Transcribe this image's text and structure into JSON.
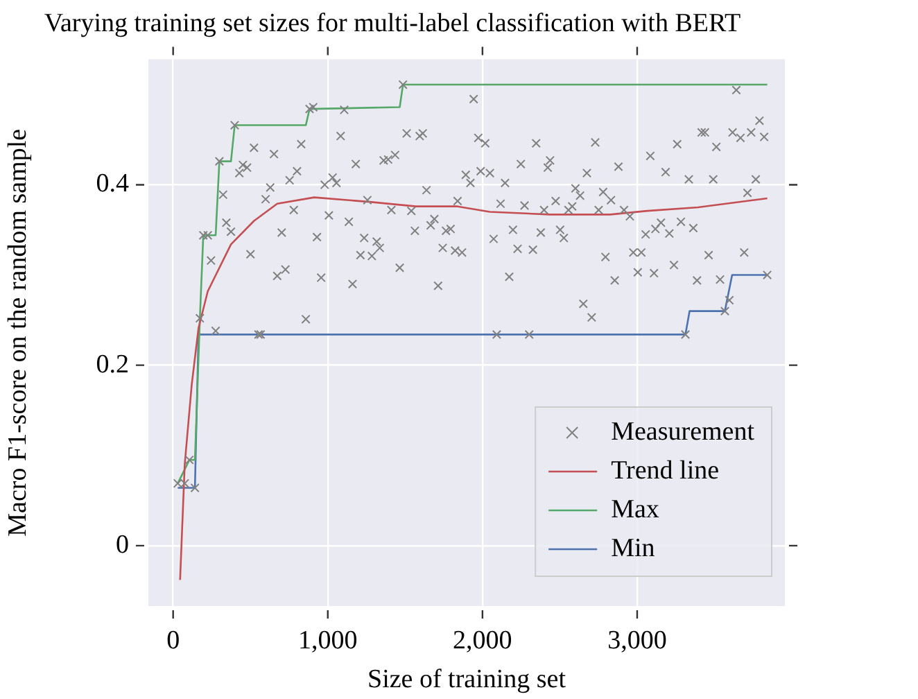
{
  "chart_data": {
    "type": "scatter",
    "title": "Varying training set sizes for multi-label classification with BERT",
    "xlabel": "Size of training set",
    "ylabel": "Macro F1-score on the random sample",
    "xlim": [
      -160,
      3955
    ],
    "ylim": [
      -0.067,
      0.539
    ],
    "xticks": [
      0,
      {
        "value": 1000,
        "label": "1,000"
      },
      {
        "value": 2000,
        "label": "2,000"
      },
      {
        "value": 3000,
        "label": "3,000"
      }
    ],
    "yticks": [
      0,
      0.2,
      0.4
    ],
    "grid": true,
    "legend": "bottom right",
    "series": [
      {
        "name": "Measurement",
        "marker": "cross",
        "color": "#808080",
        "x": [
          30,
          75,
          105,
          141,
          173,
          195,
          224,
          245,
          275,
          299,
          323,
          344,
          374,
          398,
          428,
          451,
          478,
          500,
          523,
          552,
          566,
          598,
          628,
          652,
          673,
          702,
          726,
          753,
          780,
          801,
          828,
          858,
          882,
          906,
          930,
          957,
          980,
          1007,
          1031,
          1056,
          1083,
          1106,
          1136,
          1160,
          1181,
          1211,
          1235,
          1256,
          1285,
          1316,
          1336,
          1361,
          1390,
          1411,
          1435,
          1465,
          1486,
          1510,
          1540,
          1563,
          1594,
          1614,
          1638,
          1665,
          1689,
          1713,
          1743,
          1764,
          1794,
          1823,
          1839,
          1868,
          1892,
          1922,
          1943,
          1973,
          1988,
          2018,
          2048,
          2072,
          2092,
          2117,
          2146,
          2173,
          2197,
          2227,
          2248,
          2272,
          2302,
          2326,
          2347,
          2377,
          2398,
          2422,
          2437,
          2473,
          2502,
          2526,
          2556,
          2580,
          2601,
          2631,
          2652,
          2675,
          2706,
          2729,
          2751,
          2780,
          2795,
          2831,
          2855,
          2879,
          2915,
          2953,
          2975,
          3004,
          3027,
          3055,
          3085,
          3109,
          3118,
          3154,
          3184,
          3208,
          3238,
          3259,
          3283,
          3312,
          3334,
          3363,
          3387,
          3417,
          3438,
          3462,
          3492,
          3512,
          3536,
          3567,
          3596,
          3617,
          3641,
          3668,
          3692,
          3713,
          3737,
          3767,
          3791,
          3821,
          3841
        ],
        "values": [
          0.069,
          0.069,
          0.095,
          0.064,
          0.252,
          0.344,
          0.344,
          0.316,
          0.238,
          0.426,
          0.389,
          0.358,
          0.348,
          0.466,
          0.413,
          0.422,
          0.419,
          0.323,
          0.441,
          0.234,
          0.234,
          0.384,
          0.397,
          0.434,
          0.299,
          0.347,
          0.306,
          0.405,
          0.372,
          0.415,
          0.445,
          0.251,
          0.484,
          0.486,
          0.342,
          0.297,
          0.4,
          0.366,
          0.408,
          0.402,
          0.454,
          0.483,
          0.359,
          0.29,
          0.423,
          0.322,
          0.341,
          0.383,
          0.321,
          0.337,
          0.33,
          0.427,
          0.428,
          0.372,
          0.433,
          0.308,
          0.511,
          0.457,
          0.371,
          0.349,
          0.454,
          0.457,
          0.394,
          0.355,
          0.362,
          0.288,
          0.33,
          0.349,
          0.351,
          0.327,
          0.382,
          0.325,
          0.411,
          0.402,
          0.495,
          0.452,
          0.415,
          0.446,
          0.413,
          0.34,
          0.234,
          0.379,
          0.402,
          0.298,
          0.35,
          0.329,
          0.423,
          0.377,
          0.234,
          0.328,
          0.446,
          0.347,
          0.372,
          0.419,
          0.427,
          0.382,
          0.35,
          0.341,
          0.372,
          0.376,
          0.396,
          0.388,
          0.268,
          0.413,
          0.253,
          0.447,
          0.372,
          0.392,
          0.32,
          0.383,
          0.294,
          0.42,
          0.372,
          0.365,
          0.325,
          0.303,
          0.325,
          0.345,
          0.432,
          0.302,
          0.351,
          0.358,
          0.414,
          0.346,
          0.311,
          0.445,
          0.359,
          0.234,
          0.406,
          0.352,
          0.294,
          0.458,
          0.458,
          0.322,
          0.406,
          0.442,
          0.295,
          0.26,
          0.272,
          0.458,
          0.505,
          0.452,
          0.325,
          0.391,
          0.458,
          0.406,
          0.471,
          0.453,
          0.3
        ]
      },
      {
        "name": "Trend line",
        "type": "line",
        "color": "#c44e52",
        "x": [
          45,
          75,
          120,
          164,
          224,
          374,
          523,
          673,
          912,
          1271,
          1570,
          1839,
          2048,
          2437,
          2825,
          3064,
          3393,
          3841
        ],
        "values": [
          -0.038,
          0.09,
          0.178,
          0.241,
          0.282,
          0.334,
          0.36,
          0.379,
          0.386,
          0.381,
          0.376,
          0.376,
          0.37,
          0.367,
          0.367,
          0.371,
          0.375,
          0.385
        ]
      },
      {
        "name": "Max",
        "type": "line",
        "color": "#55a868",
        "x": [
          30,
          105,
          141,
          173,
          195,
          275,
          299,
          374,
          398,
          858,
          882,
          1465,
          1486,
          3841
        ],
        "values": [
          0.069,
          0.095,
          0.095,
          0.252,
          0.344,
          0.344,
          0.426,
          0.426,
          0.466,
          0.466,
          0.484,
          0.486,
          0.511,
          0.511
        ]
      },
      {
        "name": "Min",
        "type": "line",
        "color": "#4c72b0",
        "x": [
          30,
          141,
          164,
          3312,
          3339,
          3567,
          3614,
          3841
        ],
        "values": [
          0.064,
          0.064,
          0.234,
          0.234,
          0.26,
          0.26,
          0.3,
          0.3
        ]
      }
    ]
  }
}
